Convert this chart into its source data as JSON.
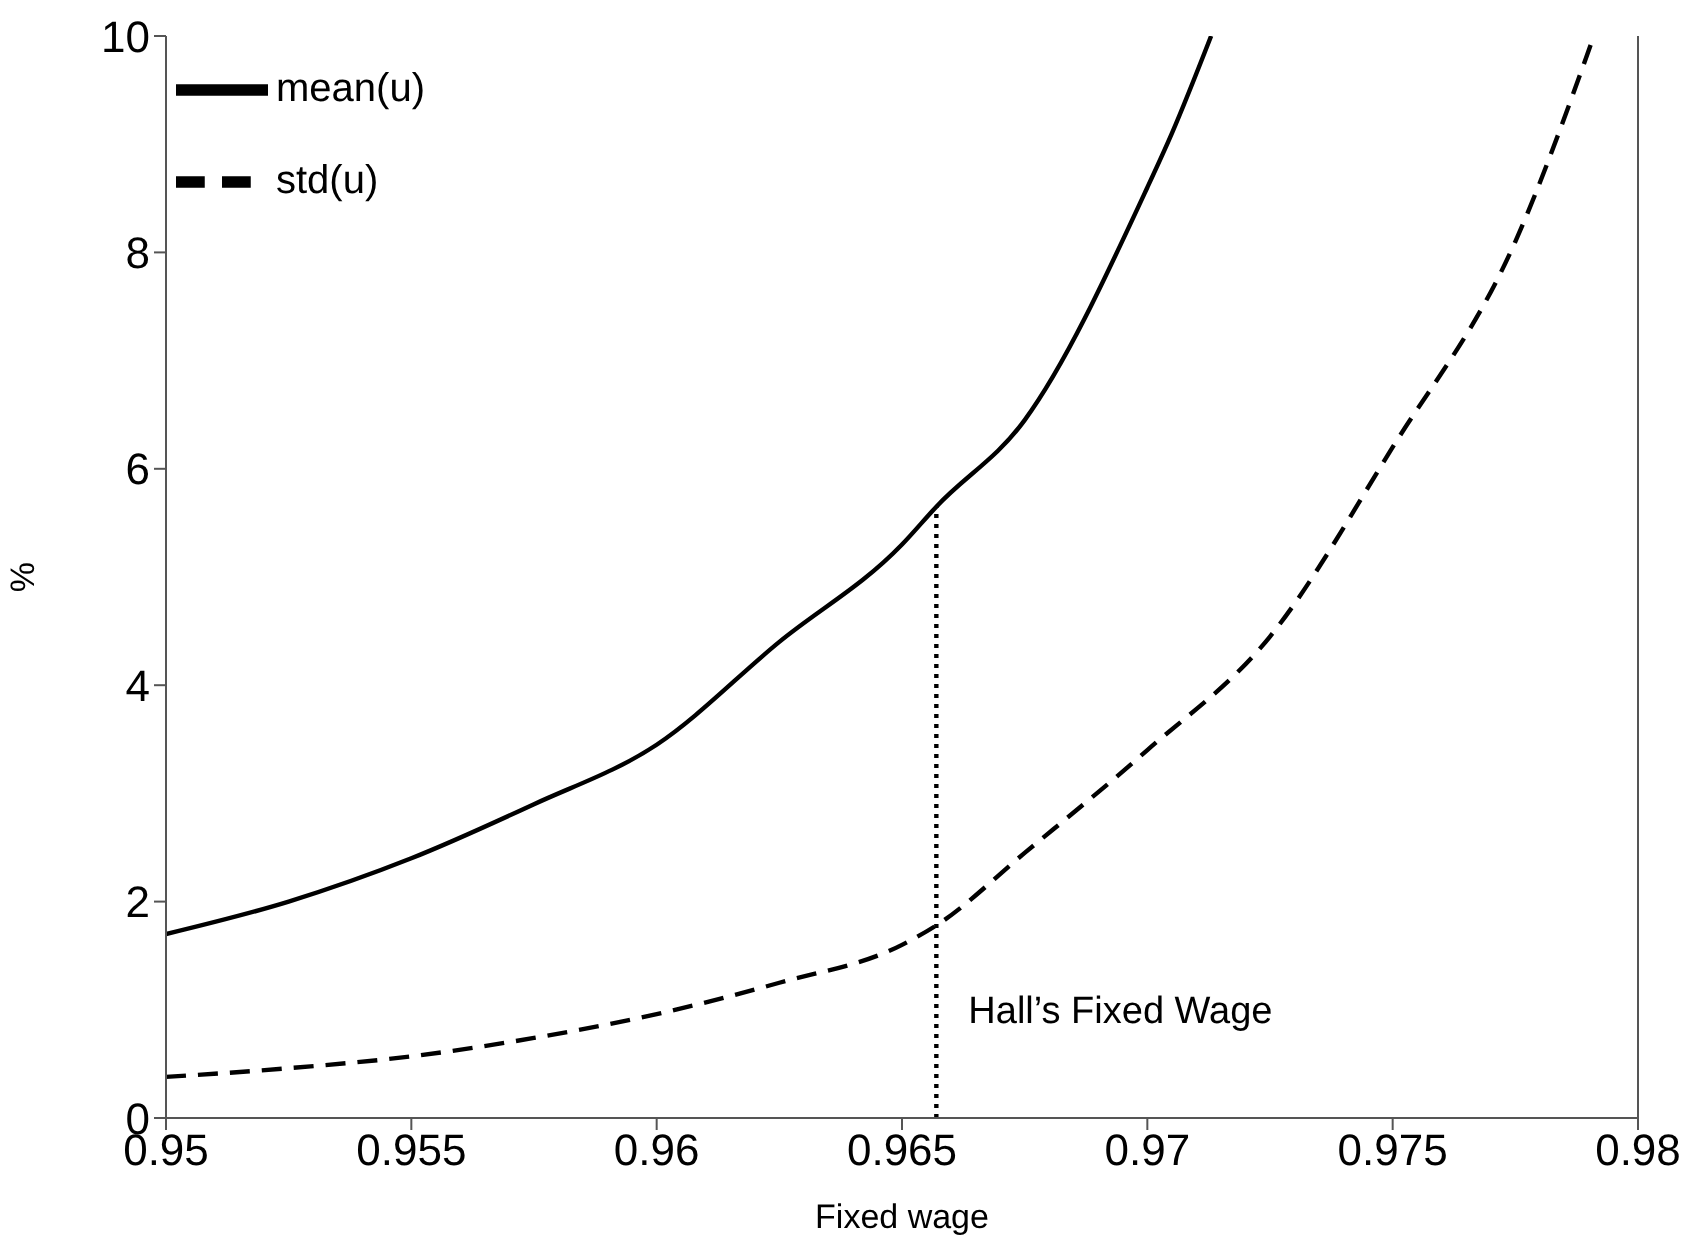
{
  "chart_data": {
    "type": "line",
    "xlabel": "Fixed wage",
    "ylabel": "%",
    "xlim": [
      0.95,
      0.98
    ],
    "xticks": [
      0.95,
      0.955,
      0.96,
      0.965,
      0.97,
      0.975,
      0.98
    ],
    "ylim": [
      0,
      10
    ],
    "yticks": [
      0,
      2,
      4,
      6,
      8,
      10
    ],
    "grid": false,
    "legend": "top left",
    "marker": "none",
    "series": [
      {
        "name": "mean(u)",
        "color": "#000000",
        "line_style": "solid",
        "x": [
          0.95,
          0.9525,
          0.955,
          0.9575,
          0.96,
          0.9625,
          0.965,
          0.9657,
          0.9675,
          0.97,
          0.9705,
          0.9713
        ],
        "values": [
          1.7,
          2.0,
          2.4,
          2.9,
          3.45,
          4.4,
          5.3,
          5.65,
          6.45,
          8.6,
          9.1,
          10
        ]
      },
      {
        "name": "std(u)",
        "color": "#000000",
        "line_style": "dashed",
        "x": [
          0.95,
          0.9525,
          0.955,
          0.9575,
          0.96,
          0.9625,
          0.965,
          0.9657,
          0.9675,
          0.97,
          0.9725,
          0.975,
          0.9775,
          0.9791
        ],
        "values": [
          0.38,
          0.46,
          0.57,
          0.74,
          0.96,
          1.25,
          1.6,
          1.78,
          2.45,
          3.4,
          4.45,
          6.2,
          8.1,
          10
        ]
      },
      {
        "color": "#000000",
        "line_style": "dotted",
        "x": [
          0.9657,
          0.9657
        ],
        "values": [
          0,
          5.65
        ]
      }
    ],
    "annotations": [
      {
        "text": "Hall’s Fixed Wage",
        "x": 0.9657,
        "y": 1
      }
    ]
  }
}
